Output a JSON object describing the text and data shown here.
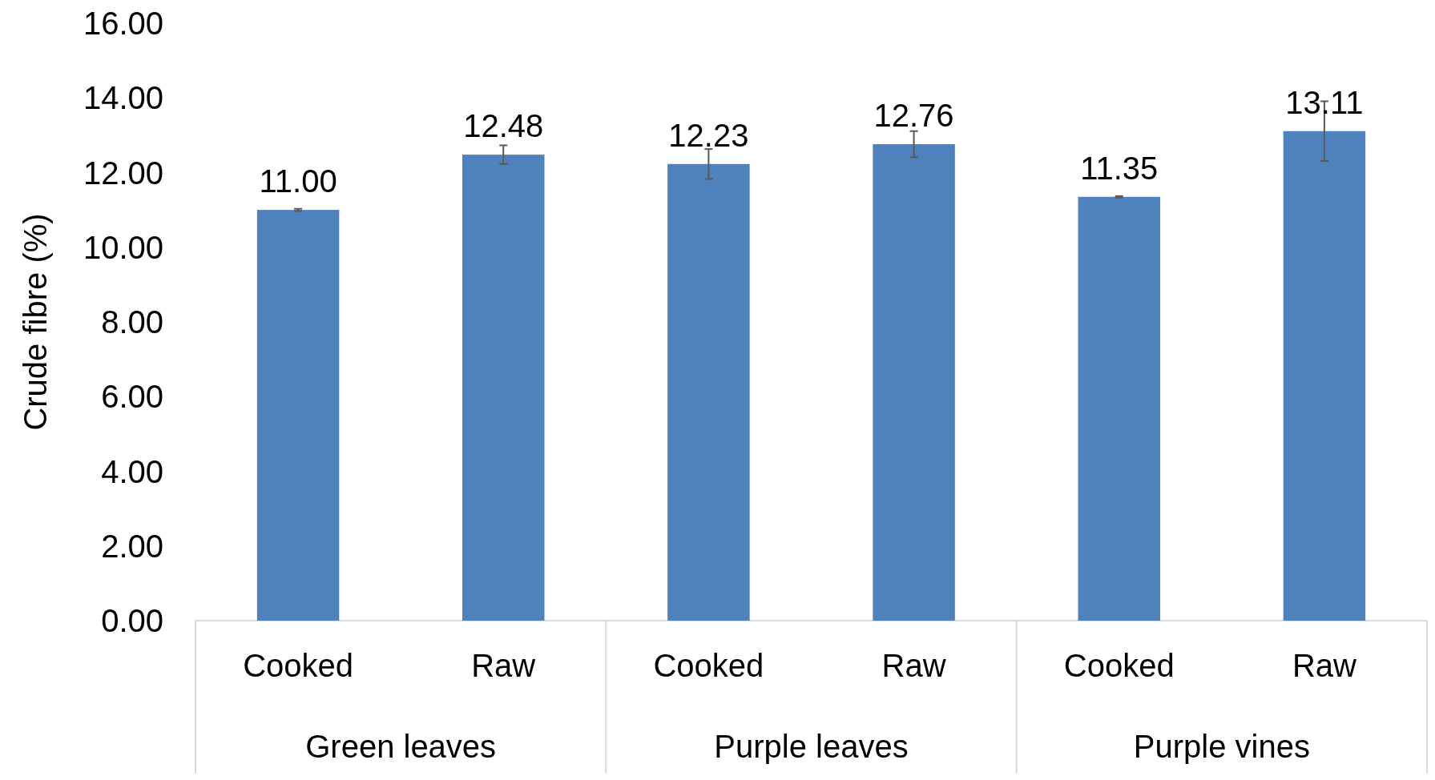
{
  "chart_data": {
    "type": "bar",
    "ylabel": "Crude fibre (%)",
    "categories": [
      "Cooked",
      "Raw",
      "Cooked",
      "Raw",
      "Cooked",
      "Raw"
    ],
    "values": [
      11.0,
      12.48,
      12.23,
      12.76,
      11.35,
      13.11
    ],
    "errors": [
      0.03,
      0.25,
      0.4,
      0.35,
      0.02,
      0.8
    ],
    "color": "#4f81bd",
    "value_labels": [
      "11.00",
      "12.48",
      "12.23",
      "12.76",
      "11.35",
      "13.11"
    ],
    "annotations": [
      "Green leaves",
      "Purple leaves",
      "Purple vines"
    ],
    "ylim": [
      0,
      16
    ],
    "yticks": [
      {
        "value": 0,
        "label": "0.00"
      },
      {
        "value": 2,
        "label": "2.00"
      },
      {
        "value": 4,
        "label": "4.00"
      },
      {
        "value": 6,
        "label": "6.00"
      },
      {
        "value": 8,
        "label": "8.00"
      },
      {
        "value": 10,
        "label": "10.00"
      },
      {
        "value": 12,
        "label": "12.00"
      },
      {
        "value": 14,
        "label": "14.00"
      },
      {
        "value": 16,
        "label": "16.00"
      }
    ],
    "grid": false
  }
}
